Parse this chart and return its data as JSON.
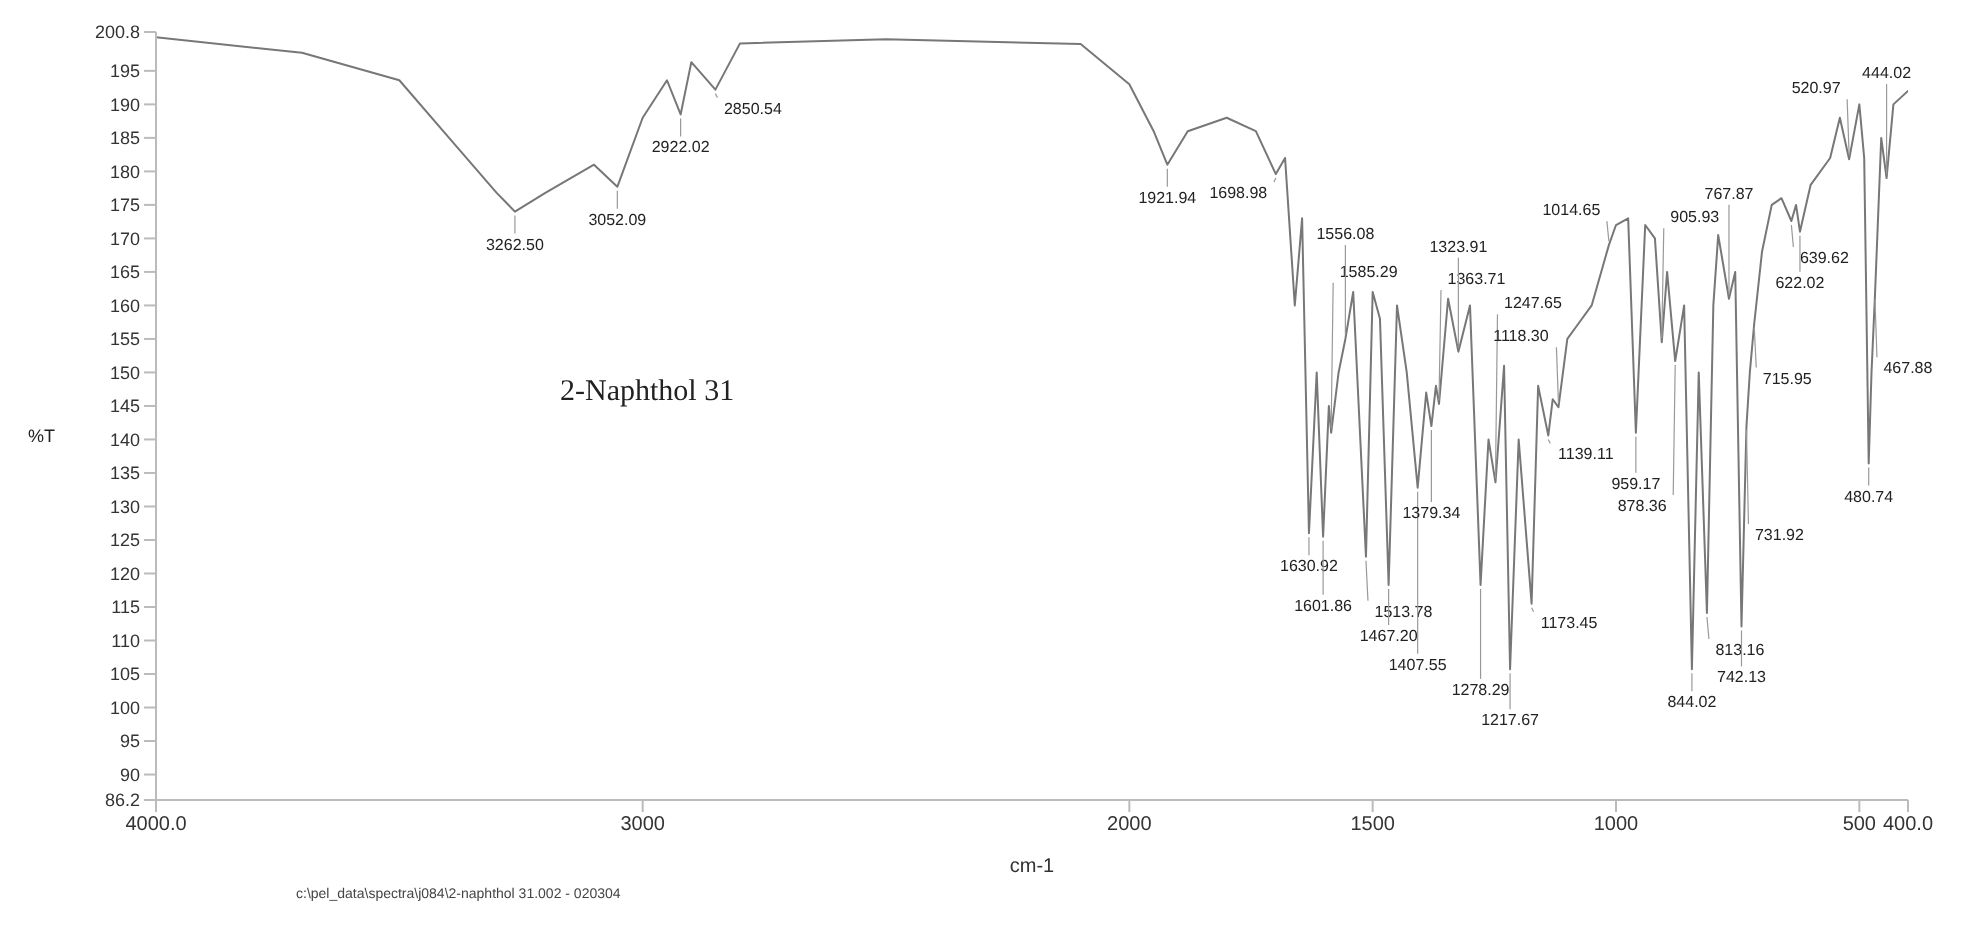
{
  "chart_data": {
    "type": "line",
    "title": "2-Naphthol 31",
    "xlabel": "cm-1",
    "ylabel": "%T",
    "x": [
      4000,
      3700,
      3500,
      3400,
      3300,
      3262.5,
      3200,
      3100,
      3052.09,
      3000,
      2950,
      2922.02,
      2900,
      2850.54,
      2800,
      2500,
      2100,
      2000,
      1950,
      1921.94,
      1880,
      1800,
      1740,
      1698.98,
      1680,
      1660,
      1645,
      1630.92,
      1615,
      1601.86,
      1590,
      1585.29,
      1570,
      1556.08,
      1540,
      1513.78,
      1500,
      1485,
      1467.2,
      1450,
      1430,
      1407.55,
      1390,
      1379.34,
      1370,
      1363.71,
      1345,
      1323.91,
      1300,
      1278.29,
      1262,
      1247.65,
      1230,
      1217.67,
      1200,
      1173.45,
      1160,
      1139.11,
      1130,
      1118.3,
      1100,
      1080,
      1050,
      1014.65,
      1000,
      975,
      959.17,
      940,
      920,
      905.93,
      895,
      878.36,
      860,
      844.02,
      830,
      813.16,
      800,
      790,
      767.87,
      755,
      742.13,
      731.92,
      725,
      715.95,
      700,
      680,
      660,
      639.62,
      630,
      622.02,
      600,
      560,
      540,
      520.97,
      500,
      490,
      480.74,
      475,
      467.88,
      455,
      444.02,
      430,
      400
    ],
    "series": [
      {
        "color": "#777777",
        "values": [
          200,
          197.7,
          193.6,
          185.2,
          176.8,
          174,
          176.8,
          181,
          177.7,
          188,
          193.6,
          188.5,
          196.3,
          192.2,
          199.1,
          199.7,
          199,
          193,
          186,
          181,
          186,
          188,
          186,
          179.6,
          182,
          160,
          173,
          126,
          150,
          125.5,
          145,
          141,
          150,
          155,
          162,
          122.5,
          162,
          158,
          118.3,
          160,
          150,
          132.8,
          147,
          142,
          148,
          145.3,
          161,
          153.1,
          160,
          118.3,
          140,
          133.6,
          151,
          105.7,
          140,
          115.5,
          148,
          140.6,
          146,
          144.8,
          155,
          157,
          160,
          169,
          172,
          173,
          141,
          172,
          170,
          154.5,
          165,
          151.7,
          160,
          105.7,
          150,
          114.1,
          160,
          170.5,
          161,
          165,
          112.1,
          142,
          150,
          157.3,
          168,
          175,
          176,
          172.6,
          175,
          171,
          178,
          182,
          188,
          181.8,
          190,
          182,
          136.4,
          150,
          161.5,
          185,
          179,
          190,
          192
        ]
      }
    ],
    "xlim": [
      4000,
      400
    ],
    "xticks": [
      {
        "value": 4000,
        "label": "4000.0"
      },
      3000,
      2000,
      1500,
      1000,
      500,
      {
        "value": 400,
        "label": "400.0"
      }
    ],
    "ylim": [
      86.2,
      200.8
    ],
    "yticks": [
      86.2,
      90,
      95,
      100,
      105,
      110,
      115,
      120,
      125,
      130,
      135,
      140,
      145,
      150,
      155,
      160,
      165,
      170,
      175,
      180,
      185,
      190,
      195,
      200.8
    ],
    "grid": false,
    "legend": false,
    "marker": "none",
    "annotations": [
      {
        "text": "3262.50",
        "x": 3262.5,
        "y": 174
      },
      {
        "text": "3052.09",
        "x": 3052.09,
        "y": 177.7
      },
      {
        "text": "2922.02",
        "x": 2922.02,
        "y": 188.5
      },
      {
        "text": "2850.54",
        "x": 2850.54,
        "y": 192.2
      },
      {
        "text": "1921.94",
        "x": 1921.94,
        "y": 181
      },
      {
        "text": "1698.98",
        "x": 1698.98,
        "y": 179.6
      },
      {
        "text": "1630.92",
        "x": 1630.92,
        "y": 126
      },
      {
        "text": "1601.86",
        "x": 1601.86,
        "y": 125.5
      },
      {
        "text": "1585.29",
        "x": 1585.29,
        "y": 141
      },
      {
        "text": "1556.08",
        "x": 1556.08,
        "y": 155
      },
      {
        "text": "1513.78",
        "x": 1513.78,
        "y": 122.5
      },
      {
        "text": "1467.20",
        "x": 1467.2,
        "y": 118.3
      },
      {
        "text": "1407.55",
        "x": 1407.55,
        "y": 132.8
      },
      {
        "text": "1379.34",
        "x": 1379.34,
        "y": 142
      },
      {
        "text": "1363.71",
        "x": 1363.71,
        "y": 145.3
      },
      {
        "text": "1323.91",
        "x": 1323.91,
        "y": 153.1
      },
      {
        "text": "1278.29",
        "x": 1278.29,
        "y": 118.3
      },
      {
        "text": "1247.65",
        "x": 1247.65,
        "y": 133.6
      },
      {
        "text": "1217.67",
        "x": 1217.67,
        "y": 105.7
      },
      {
        "text": "1173.45",
        "x": 1173.45,
        "y": 115.5
      },
      {
        "text": "1139.11",
        "x": 1139.11,
        "y": 140.6
      },
      {
        "text": "1118.30",
        "x": 1118.3,
        "y": 144.8
      },
      {
        "text": "1014.65",
        "x": 1014.65,
        "y": 169
      },
      {
        "text": "959.17",
        "x": 959.17,
        "y": 141
      },
      {
        "text": "905.93",
        "x": 905.93,
        "y": 154.5
      },
      {
        "text": "878.36",
        "x": 878.36,
        "y": 151.7
      },
      {
        "text": "844.02",
        "x": 844.02,
        "y": 105.7
      },
      {
        "text": "813.16",
        "x": 813.16,
        "y": 114.1
      },
      {
        "text": "767.87",
        "x": 767.87,
        "y": 161
      },
      {
        "text": "742.13",
        "x": 742.13,
        "y": 112.1
      },
      {
        "text": "731.92",
        "x": 731.92,
        "y": 142
      },
      {
        "text": "715.95",
        "x": 715.95,
        "y": 157.3
      },
      {
        "text": "639.62",
        "x": 639.62,
        "y": 172.6
      },
      {
        "text": "622.02",
        "x": 622.02,
        "y": 171
      },
      {
        "text": "520.97",
        "x": 520.97,
        "y": 181.8
      },
      {
        "text": "480.74",
        "x": 480.74,
        "y": 136.4
      },
      {
        "text": "467.88",
        "x": 467.88,
        "y": 161.5
      },
      {
        "text": "444.02",
        "x": 444.02,
        "y": 179
      },
      "c:\\pel_data\\spectra\\j084\\2-naphthol 31.002 - 020304"
    ]
  }
}
